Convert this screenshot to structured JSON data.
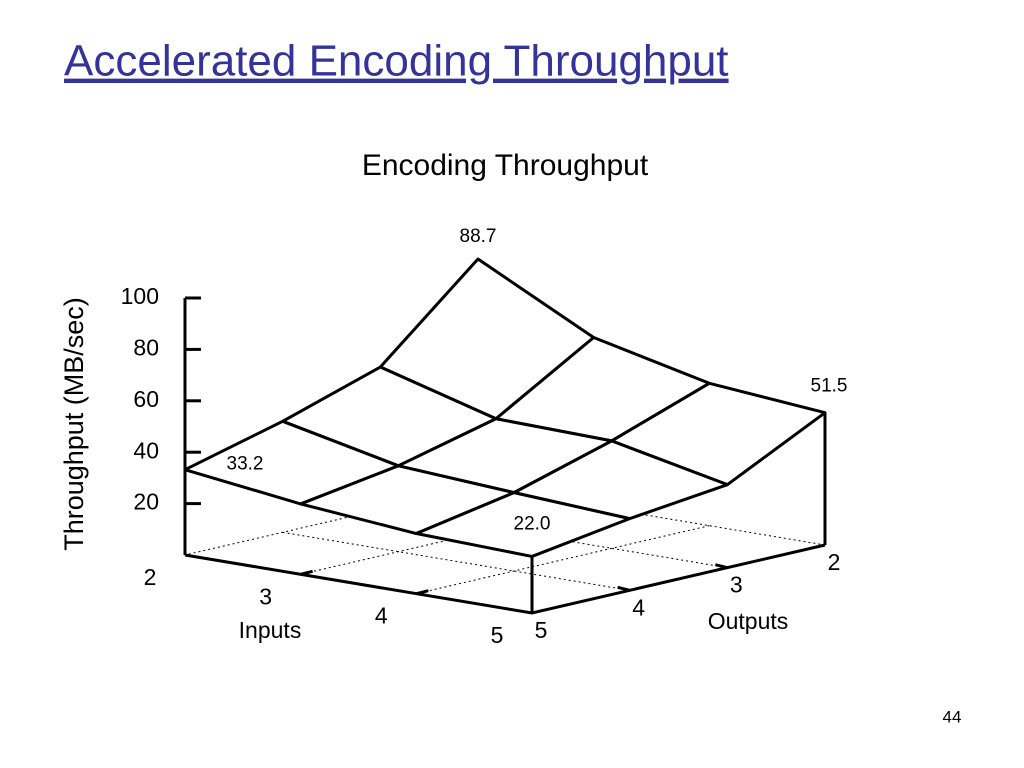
{
  "slide_title": "Accelerated Encoding Throughput",
  "page_number": "44",
  "chart_data": {
    "type": "surface3d",
    "title": "Encoding Throughput",
    "x_label": "Inputs",
    "y_label": "Outputs",
    "z_label": "Throughput (MB/sec)",
    "inputs": [
      2,
      3,
      4,
      5
    ],
    "outputs": [
      2,
      3,
      4,
      5
    ],
    "values": [
      [
        88.7,
        55.5,
        43.2,
        33.2
      ],
      [
        65.7,
        42.9,
        33.4,
        27.4
      ],
      [
        55.4,
        41.8,
        30.5,
        23.4
      ],
      [
        51.5,
        32.3,
        27.9,
        22.0
      ]
    ],
    "value_labels": [
      [
        "88.7",
        null,
        null,
        "33.2"
      ],
      [
        null,
        null,
        null,
        null
      ],
      [
        null,
        null,
        null,
        null
      ],
      [
        "51.5",
        null,
        null,
        "22.0"
      ]
    ],
    "zlim": [
      0,
      100
    ],
    "zticks": [
      20,
      40,
      60,
      80,
      100
    ],
    "grid": true,
    "color": "#000000"
  }
}
